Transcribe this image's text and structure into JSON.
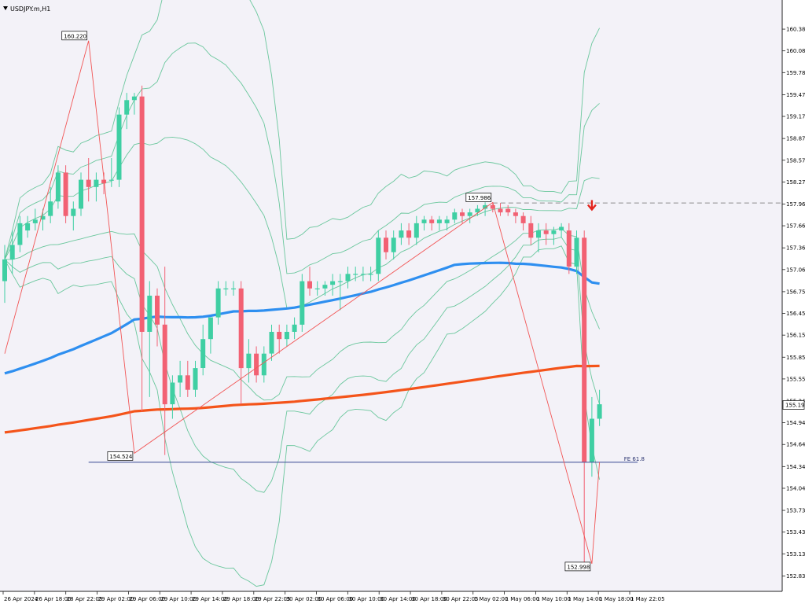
{
  "symbol": "USDJPY.m,H1",
  "current_price": "155.190",
  "colors": {
    "background": "#f3f2f8",
    "bull": "#3fcfa3",
    "bear": "#f26173",
    "bollinger": "#52c08d",
    "ma_fast": "#2e8ff0",
    "ma_slow": "#f4541a",
    "zigzag": "#f25656",
    "fe_line": "#4b5a9c",
    "arrow": "#e3231c"
  },
  "chart_data": {
    "type": "candlestick",
    "symbol": "USDJPY.m,H1",
    "y_axis_ticks": [
      "160.380",
      "160.080",
      "159.780",
      "159.475",
      "159.175",
      "158.870",
      "158.570",
      "158.270",
      "157.965",
      "157.665",
      "157.360",
      "157.060",
      "156.755",
      "156.455",
      "156.155",
      "155.850",
      "155.550",
      "155.245",
      "154.945",
      "154.645",
      "154.340",
      "154.040",
      "153.735",
      "153.435",
      "153.135",
      "152.830"
    ],
    "x_axis_ticks": [
      "26 Apr 2024",
      "26 Apr 18:00",
      "28 Apr 22:05",
      "29 Apr 02:00",
      "29 Apr 06:00",
      "29 Apr 10:00",
      "29 Apr 14:00",
      "29 Apr 18:00",
      "29 Apr 22:05",
      "30 Apr 02:00",
      "30 Apr 06:00",
      "30 Apr 10:00",
      "30 Apr 14:00",
      "30 Apr 18:00",
      "30 Apr 22:05",
      "1 May 02:00",
      "1 May 06:00",
      "1 May 10:00",
      "1 May 14:00",
      "1 May 18:00",
      "1 May 22:05"
    ],
    "ylim": [
      152.78,
      160.5
    ],
    "grid": false,
    "candles": [
      {
        "o": 156.9,
        "h": 157.4,
        "l": 156.6,
        "c": 157.2
      },
      {
        "o": 157.2,
        "h": 157.6,
        "l": 157.0,
        "c": 157.4
      },
      {
        "o": 157.4,
        "h": 157.8,
        "l": 157.3,
        "c": 157.7
      },
      {
        "o": 157.6,
        "h": 157.8,
        "l": 157.5,
        "c": 157.7
      },
      {
        "o": 157.7,
        "h": 157.9,
        "l": 157.6,
        "c": 157.75
      },
      {
        "o": 157.75,
        "h": 157.9,
        "l": 157.6,
        "c": 157.8
      },
      {
        "o": 157.8,
        "h": 158.2,
        "l": 157.7,
        "c": 158.0
      },
      {
        "o": 158.0,
        "h": 158.5,
        "l": 157.9,
        "c": 158.4
      },
      {
        "o": 158.4,
        "h": 158.5,
        "l": 157.7,
        "c": 157.8
      },
      {
        "o": 157.8,
        "h": 158.0,
        "l": 157.6,
        "c": 157.9
      },
      {
        "o": 157.9,
        "h": 158.4,
        "l": 157.8,
        "c": 158.3
      },
      {
        "o": 158.3,
        "h": 158.6,
        "l": 158.0,
        "c": 158.2
      },
      {
        "o": 158.2,
        "h": 158.4,
        "l": 158.0,
        "c": 158.3
      },
      {
        "o": 158.3,
        "h": 158.4,
        "l": 158.1,
        "c": 158.25
      },
      {
        "o": 158.3,
        "h": 158.6,
        "l": 158.2,
        "c": 158.3
      },
      {
        "o": 158.3,
        "h": 159.3,
        "l": 158.2,
        "c": 159.2
      },
      {
        "o": 159.2,
        "h": 159.5,
        "l": 159.0,
        "c": 159.4
      },
      {
        "o": 159.4,
        "h": 159.5,
        "l": 159.2,
        "c": 159.45
      },
      {
        "o": 159.45,
        "h": 159.6,
        "l": 155.1,
        "c": 156.2
      },
      {
        "o": 156.2,
        "h": 156.9,
        "l": 155.3,
        "c": 156.7
      },
      {
        "o": 156.7,
        "h": 156.8,
        "l": 156.0,
        "c": 156.3
      },
      {
        "o": 156.3,
        "h": 157.1,
        "l": 154.5,
        "c": 155.2
      },
      {
        "o": 155.2,
        "h": 155.6,
        "l": 155.0,
        "c": 155.5
      },
      {
        "o": 155.5,
        "h": 155.8,
        "l": 155.3,
        "c": 155.6
      },
      {
        "o": 155.6,
        "h": 155.8,
        "l": 155.3,
        "c": 155.4
      },
      {
        "o": 155.4,
        "h": 155.8,
        "l": 155.3,
        "c": 155.7
      },
      {
        "o": 155.7,
        "h": 156.3,
        "l": 155.6,
        "c": 156.1
      },
      {
        "o": 156.1,
        "h": 156.4,
        "l": 155.9,
        "c": 156.4
      },
      {
        "o": 156.4,
        "h": 156.9,
        "l": 156.3,
        "c": 156.8
      },
      {
        "o": 156.8,
        "h": 156.9,
        "l": 156.7,
        "c": 156.8
      },
      {
        "o": 156.8,
        "h": 156.9,
        "l": 156.7,
        "c": 156.8
      },
      {
        "o": 156.8,
        "h": 156.9,
        "l": 155.2,
        "c": 155.7
      },
      {
        "o": 155.7,
        "h": 156.1,
        "l": 155.5,
        "c": 155.9
      },
      {
        "o": 155.9,
        "h": 156.0,
        "l": 155.5,
        "c": 155.6
      },
      {
        "o": 155.6,
        "h": 156.0,
        "l": 155.5,
        "c": 155.9
      },
      {
        "o": 155.9,
        "h": 156.3,
        "l": 155.8,
        "c": 156.2
      },
      {
        "o": 156.2,
        "h": 156.3,
        "l": 155.9,
        "c": 156.1
      },
      {
        "o": 156.1,
        "h": 156.3,
        "l": 156.0,
        "c": 156.2
      },
      {
        "o": 156.2,
        "h": 156.4,
        "l": 156.1,
        "c": 156.3
      },
      {
        "o": 156.3,
        "h": 157.0,
        "l": 156.2,
        "c": 156.9
      },
      {
        "o": 156.9,
        "h": 157.1,
        "l": 156.7,
        "c": 156.8
      },
      {
        "o": 156.8,
        "h": 156.9,
        "l": 156.7,
        "c": 156.8
      },
      {
        "o": 156.8,
        "h": 156.9,
        "l": 156.7,
        "c": 156.85
      },
      {
        "o": 156.85,
        "h": 157.0,
        "l": 156.7,
        "c": 156.9
      },
      {
        "o": 156.9,
        "h": 157.0,
        "l": 156.5,
        "c": 156.9
      },
      {
        "o": 156.9,
        "h": 157.1,
        "l": 156.8,
        "c": 157.0
      },
      {
        "o": 157.0,
        "h": 157.1,
        "l": 156.9,
        "c": 157.0
      },
      {
        "o": 157.0,
        "h": 157.1,
        "l": 156.9,
        "c": 157.0
      },
      {
        "o": 157.0,
        "h": 157.1,
        "l": 156.9,
        "c": 157.0
      },
      {
        "o": 157.0,
        "h": 157.6,
        "l": 156.9,
        "c": 157.5
      },
      {
        "o": 157.5,
        "h": 157.6,
        "l": 157.2,
        "c": 157.3
      },
      {
        "o": 157.3,
        "h": 157.6,
        "l": 157.2,
        "c": 157.5
      },
      {
        "o": 157.5,
        "h": 157.7,
        "l": 157.4,
        "c": 157.6
      },
      {
        "o": 157.6,
        "h": 157.7,
        "l": 157.4,
        "c": 157.5
      },
      {
        "o": 157.5,
        "h": 157.8,
        "l": 157.4,
        "c": 157.7
      },
      {
        "o": 157.7,
        "h": 157.8,
        "l": 157.6,
        "c": 157.75
      },
      {
        "o": 157.75,
        "h": 157.8,
        "l": 157.6,
        "c": 157.7
      },
      {
        "o": 157.7,
        "h": 157.8,
        "l": 157.6,
        "c": 157.75
      },
      {
        "o": 157.7,
        "h": 157.8,
        "l": 157.6,
        "c": 157.75
      },
      {
        "o": 157.75,
        "h": 157.9,
        "l": 157.7,
        "c": 157.85
      },
      {
        "o": 157.85,
        "h": 157.9,
        "l": 157.7,
        "c": 157.8
      },
      {
        "o": 157.8,
        "h": 157.9,
        "l": 157.7,
        "c": 157.85
      },
      {
        "o": 157.85,
        "h": 157.95,
        "l": 157.8,
        "c": 157.9
      },
      {
        "o": 157.9,
        "h": 157.99,
        "l": 157.8,
        "c": 157.95
      },
      {
        "o": 157.95,
        "h": 157.99,
        "l": 157.85,
        "c": 157.9
      },
      {
        "o": 157.9,
        "h": 157.98,
        "l": 157.8,
        "c": 157.85
      },
      {
        "o": 157.9,
        "h": 157.95,
        "l": 157.8,
        "c": 157.85
      },
      {
        "o": 157.85,
        "h": 157.9,
        "l": 157.7,
        "c": 157.8
      },
      {
        "o": 157.8,
        "h": 157.85,
        "l": 157.6,
        "c": 157.7
      },
      {
        "o": 157.7,
        "h": 157.8,
        "l": 157.4,
        "c": 157.5
      },
      {
        "o": 157.5,
        "h": 157.7,
        "l": 157.3,
        "c": 157.6
      },
      {
        "o": 157.6,
        "h": 157.7,
        "l": 157.4,
        "c": 157.55
      },
      {
        "o": 157.55,
        "h": 157.65,
        "l": 157.4,
        "c": 157.6
      },
      {
        "o": 157.6,
        "h": 157.7,
        "l": 157.5,
        "c": 157.65
      },
      {
        "o": 157.6,
        "h": 157.7,
        "l": 157.0,
        "c": 157.1
      },
      {
        "o": 157.1,
        "h": 157.6,
        "l": 157.0,
        "c": 157.5
      },
      {
        "o": 157.5,
        "h": 157.6,
        "l": 152.998,
        "c": 154.4
      },
      {
        "o": 154.4,
        "h": 155.3,
        "l": 154.2,
        "c": 155.0
      },
      {
        "o": 155.0,
        "h": 155.4,
        "l": 154.9,
        "c": 155.2
      }
    ],
    "zigzag": [
      {
        "price": 155.9,
        "label": ""
      },
      {
        "price": 160.22,
        "label": "160.220"
      },
      {
        "price": 154.524,
        "label": "154.524"
      },
      {
        "price": 157.986,
        "label": "157.986"
      },
      {
        "price": 152.998,
        "label": "152.998"
      },
      {
        "price": 154.4,
        "label": ""
      }
    ],
    "fe_label": "FE 61.8",
    "fe_price": 154.4,
    "resistance_price": 157.98
  }
}
